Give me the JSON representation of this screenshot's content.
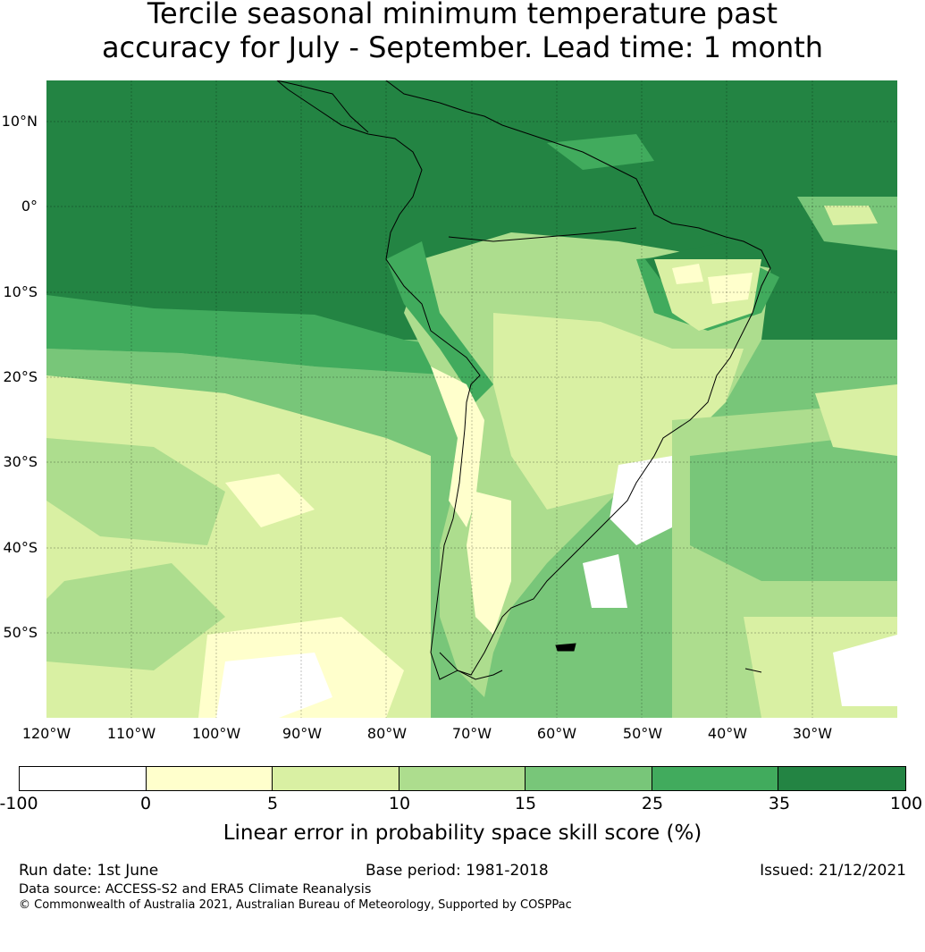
{
  "title": {
    "line1": "Tercile seasonal minimum temperature past",
    "line2": "accuracy for July - September. Lead time: 1 month"
  },
  "map": {
    "lat_labels": [
      "10°N",
      "0°",
      "10°S",
      "20°S",
      "30°S",
      "40°S",
      "50°S"
    ],
    "lon_labels": [
      "120°W",
      "110°W",
      "100°W",
      "90°W",
      "80°W",
      "70°W",
      "60°W",
      "50°W",
      "40°W",
      "30°W"
    ],
    "colors": {
      "below_0": "#ffffff",
      "0_5": "#ffffcc",
      "5_10": "#d9f0a3",
      "10_15": "#addd8e",
      "15_25": "#78c679",
      "25_35": "#41ab5d",
      "35_100": "#238443",
      "coast": "#000000"
    }
  },
  "colorbar": {
    "ticks": [
      "-100",
      "0",
      "5",
      "10",
      "15",
      "25",
      "35",
      "100"
    ],
    "colors": [
      "#ffffff",
      "#ffffcc",
      "#d9f0a3",
      "#addd8e",
      "#78c679",
      "#41ab5d",
      "#238443"
    ],
    "label": "Linear error in probability space skill score (%)"
  },
  "footer": {
    "run_date": "Run date: 1st June",
    "base_period": "Base period: 1981-2018",
    "issued": "Issued: 21/12/2021",
    "data_source": "Data source: ACCESS-S2 and ERA5 Climate Reanalysis",
    "copyright": "© Commonwealth of Australia 2021, Australian Bureau of Meteorology, Supported by COSPPac"
  }
}
